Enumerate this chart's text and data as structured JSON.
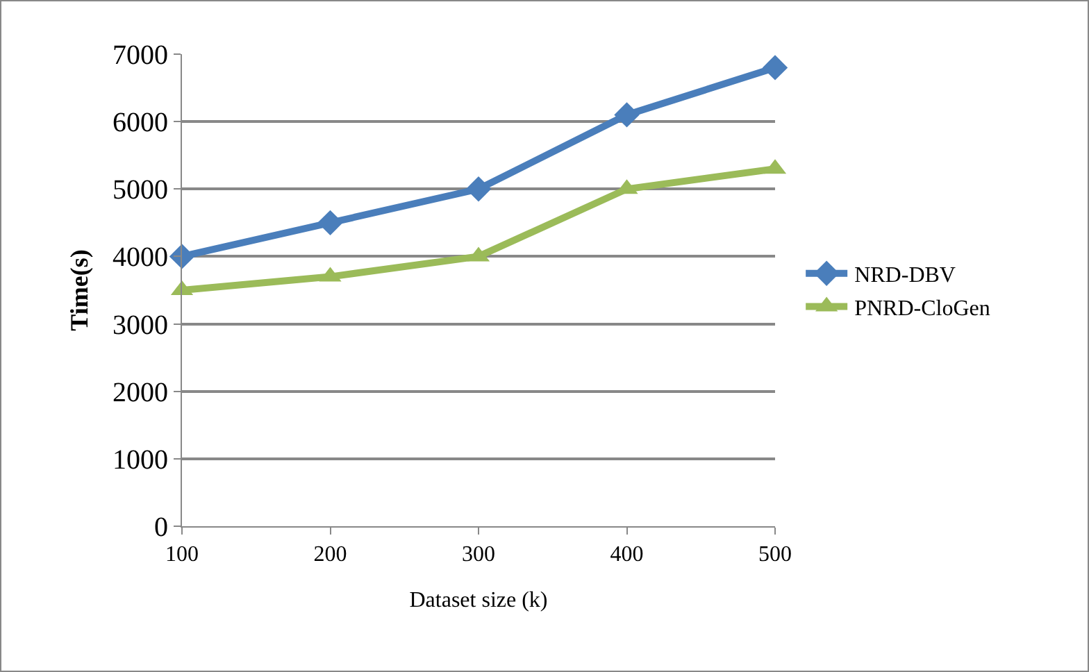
{
  "chart_data": {
    "type": "line",
    "xlabel": "Dataset size (k)",
    "ylabel": "Time(s)",
    "x": [
      100,
      200,
      300,
      400,
      500
    ],
    "series": [
      {
        "name": "NRD-DBV",
        "color": "#4a7ebb",
        "marker": "diamond",
        "values": [
          4000,
          4500,
          5000,
          6100,
          6800
        ]
      },
      {
        "name": "PNRD-CloGen",
        "color": "#9bbb59",
        "marker": "triangle",
        "values": [
          3500,
          3700,
          4000,
          5000,
          5300
        ]
      }
    ],
    "xlim": [
      100,
      500
    ],
    "xticks": [
      100,
      200,
      300,
      400,
      500
    ],
    "ylim": [
      0,
      7000
    ],
    "yticks": [
      0,
      1000,
      2000,
      3000,
      4000,
      5000,
      6000,
      7000
    ],
    "grid": "y",
    "legend": "right",
    "line_style": "solid"
  }
}
